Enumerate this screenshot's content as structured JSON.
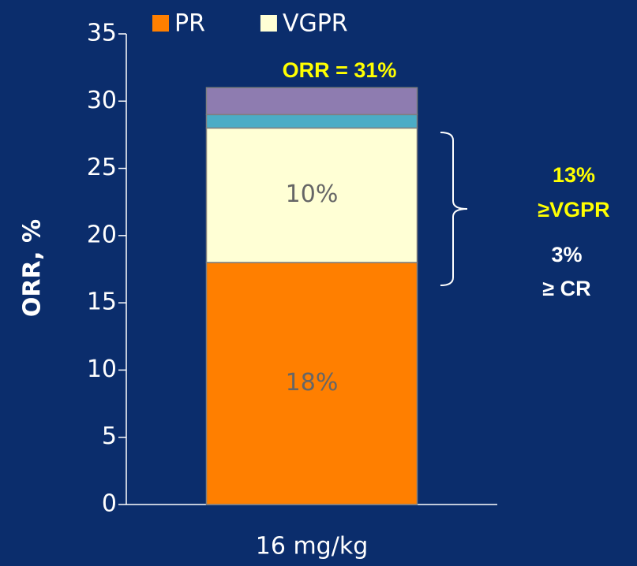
{
  "chart_data": {
    "type": "stacked_bar",
    "categories": [
      "16 mg/kg"
    ],
    "series": [
      {
        "name": "PR",
        "color": "#ff7f00",
        "values": [
          18
        ],
        "value_labels": [
          "18%"
        ]
      },
      {
        "name": "VGPR",
        "color": "#ffffd5",
        "values": [
          10
        ],
        "value_labels": [
          "10%"
        ]
      },
      {
        "color": "#4bacc6",
        "values": [
          1
        ]
      },
      {
        "color": "#8e7cb0",
        "values": [
          2
        ]
      }
    ],
    "ylabel": "ORR, %",
    "ylim": [
      0,
      35
    ],
    "yticks": [
      0,
      5,
      10,
      15,
      20,
      25,
      30,
      35
    ],
    "annotations": [
      "ORR = 31%",
      "13%",
      "≥VGPR",
      "3%",
      "≥ CR"
    ]
  }
}
